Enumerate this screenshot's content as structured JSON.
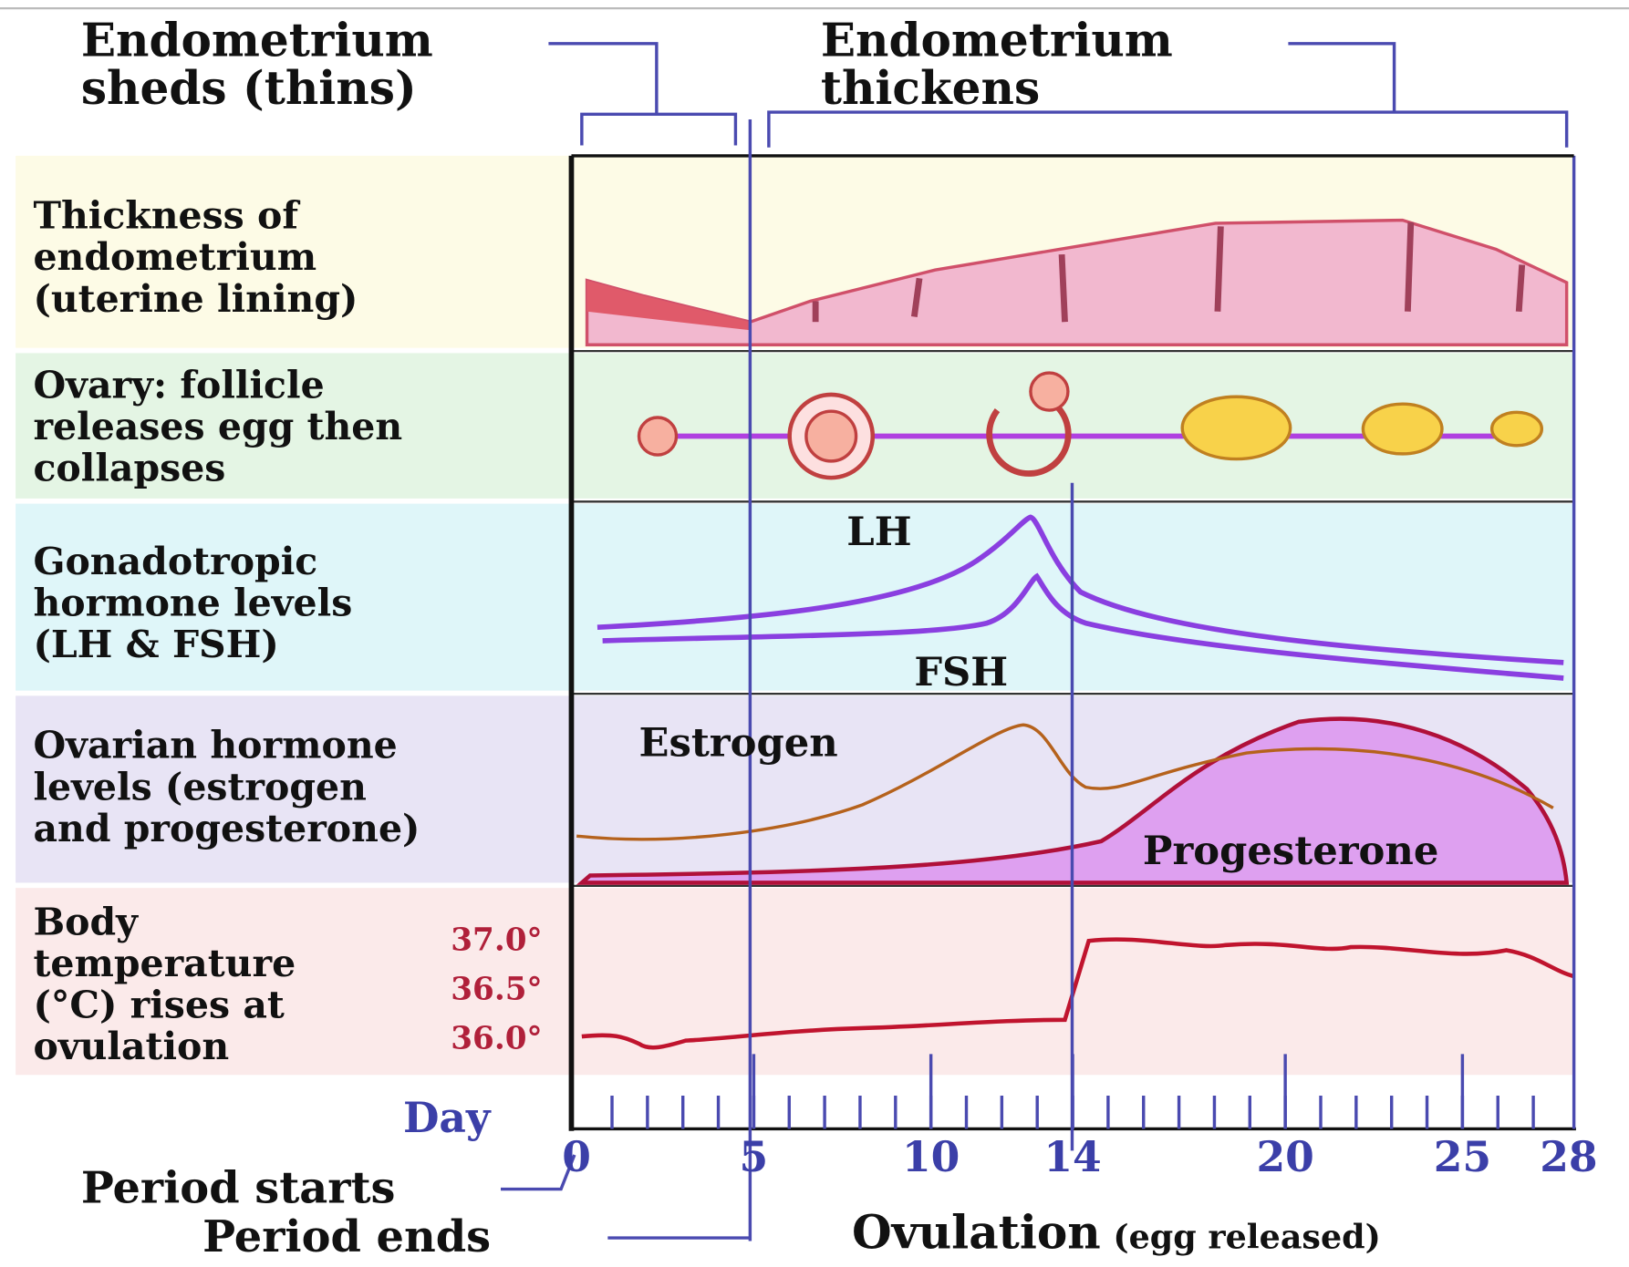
{
  "phases": [
    {
      "lines": [
        "Endometrium",
        "sheds (thins)"
      ]
    },
    {
      "lines": [
        "Endometrium",
        "thickens"
      ]
    }
  ],
  "rows": [
    {
      "lines": [
        "Thickness of",
        "endometrium",
        "(uterine lining)"
      ]
    },
    {
      "lines": [
        "Ovary: follicle",
        "releases egg then",
        "collapses"
      ]
    },
    {
      "lines": [
        "Gonadotropic",
        "hormone levels",
        "(LH & FSH)"
      ]
    },
    {
      "lines": [
        "Ovarian hormone",
        "levels (estrogen",
        "and progesterone)"
      ]
    },
    {
      "lines": [
        "Body",
        "temperature",
        "(°C) rises at",
        "ovulation"
      ]
    }
  ],
  "curve_labels": {
    "lh": "LH",
    "fsh": "FSH",
    "estrogen": "Estrogen",
    "progesterone": "Progesterone"
  },
  "temperature_scale": [
    {
      "value": 37,
      "label": "37.0°"
    },
    {
      "value": 36.5,
      "label": "36.5°"
    },
    {
      "value": 36,
      "label": "36.0°"
    }
  ],
  "day_axis": {
    "title": "Day",
    "ticks": [
      0,
      5,
      10,
      14,
      20,
      25,
      28
    ]
  },
  "annotations": {
    "period_starts": "Period starts",
    "period_ends": "Period ends",
    "ovulation": "Ovulation",
    "ovulation_note": "(egg released)"
  }
}
